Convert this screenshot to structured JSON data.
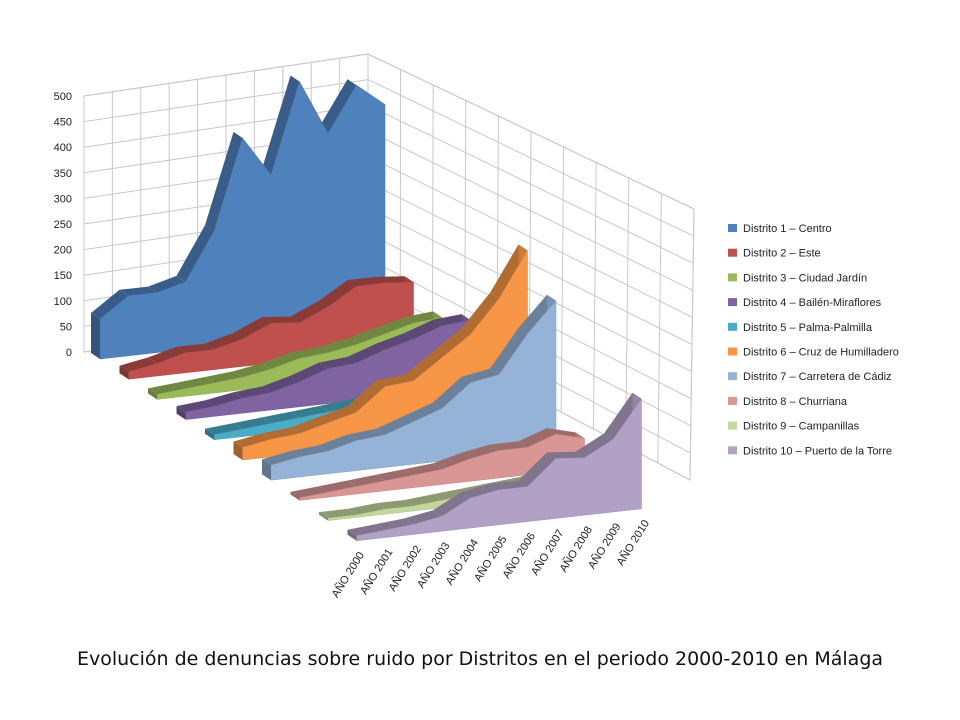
{
  "caption": "Evolución de denuncias sobre ruido por Distritos en el periodo 2000-2010 en Málaga",
  "chart_data": {
    "type": "area",
    "variant": "3d",
    "title": "",
    "xlabel": "",
    "ylabel": "",
    "ylim": [
      0,
      500
    ],
    "yticks": [
      "0",
      "50",
      "100",
      "150",
      "200",
      "250",
      "300",
      "350",
      "400",
      "450",
      "500"
    ],
    "grid": true,
    "legend_position": "right",
    "categories": [
      "AÑO 2000",
      "AÑO 2001",
      "AÑO 2002",
      "AÑO 2003",
      "AÑO 2004",
      "AÑO 2005",
      "AÑO 2006",
      "AÑO 2007",
      "AÑO 2008",
      "AÑO 2009",
      "AÑO 2010"
    ],
    "series": [
      {
        "name": "Distrito 1 – Centro",
        "color": "#4F81BD",
        "values": [
          80,
          120,
          120,
          135,
          230,
          410,
          330,
          510,
          400,
          490,
          445
        ]
      },
      {
        "name": "Distrito 2 – Este",
        "color": "#C0504D",
        "values": [
          15,
          25,
          40,
          40,
          55,
          80,
          75,
          100,
          135,
          135,
          130
        ]
      },
      {
        "name": "Distrito 3 – Ciudad Jardín",
        "color": "#9BBB59",
        "values": [
          10,
          15,
          20,
          25,
          35,
          50,
          55,
          65,
          80,
          95,
          100
        ]
      },
      {
        "name": "Distrito 4 – Bailén-Miraflores",
        "color": "#8064A2",
        "values": [
          15,
          20,
          30,
          35,
          50,
          70,
          75,
          95,
          110,
          130,
          135
        ]
      },
      {
        "name": "Distrito 5 – Palma-Palmilla",
        "color": "#4BACC6",
        "values": [
          10,
          15,
          20,
          25,
          30,
          35,
          45,
          55,
          60,
          70,
          75
        ]
      },
      {
        "name": "Distrito 6 – Cruz de Humilladero",
        "color": "#F79646",
        "values": [
          25,
          35,
          40,
          55,
          70,
          115,
          120,
          160,
          200,
          265,
          355
        ]
      },
      {
        "name": "Distrito 7 – Carretera de Cádiz",
        "color": "#95B3D7",
        "values": [
          30,
          40,
          45,
          60,
          65,
          85,
          105,
          150,
          160,
          235,
          295
        ]
      },
      {
        "name": "Distrito 8 – Churriana",
        "color": "#D99694",
        "values": [
          5,
          10,
          15,
          20,
          25,
          30,
          45,
          55,
          55,
          75,
          60
        ]
      },
      {
        "name": "Distrito 9 – Campanillas",
        "color": "#C3D69B",
        "values": [
          5,
          5,
          10,
          10,
          15,
          20,
          25,
          30,
          40,
          45,
          50
        ]
      },
      {
        "name": "Distrito 10 – Puerto de la Torre",
        "color": "#B2A1C7",
        "values": [
          10,
          15,
          20,
          30,
          60,
          70,
          70,
          120,
          115,
          145,
          220
        ]
      }
    ]
  }
}
